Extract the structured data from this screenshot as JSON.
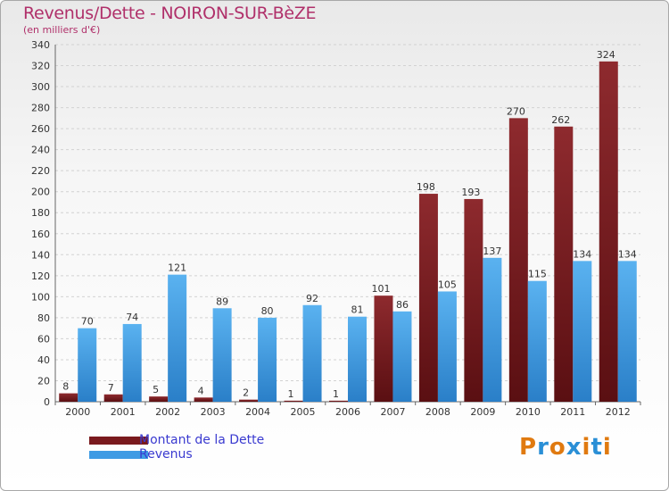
{
  "chart_data": {
    "type": "bar",
    "title": "Revenus/Dette - NOIRON-SUR-BèZE",
    "subtitle": "(en milliers d'€)",
    "categories": [
      "2000",
      "2001",
      "2002",
      "2003",
      "2004",
      "2005",
      "2006",
      "2007",
      "2008",
      "2009",
      "2010",
      "2011",
      "2012"
    ],
    "series": [
      {
        "name": "Montant de la Dette",
        "color": "#7a1a1e",
        "values": [
          8,
          7,
          5,
          4,
          2,
          1,
          1,
          101,
          198,
          193,
          270,
          262,
          324
        ]
      },
      {
        "name": "Revenus",
        "color": "#3f9be4",
        "values": [
          70,
          74,
          121,
          89,
          80,
          92,
          81,
          86,
          105,
          137,
          115,
          134,
          134
        ]
      }
    ],
    "ylim": [
      0,
      340
    ],
    "ytick_step": 20,
    "grid": true,
    "legend": "bottom-left"
  },
  "logo": {
    "text": "Proxiti",
    "colors": [
      "#e07a10",
      "#2a8fd6",
      "#e07a10",
      "#2a8fd6",
      "#e07a10",
      "#2a8fd6",
      "#e07a10"
    ]
  }
}
